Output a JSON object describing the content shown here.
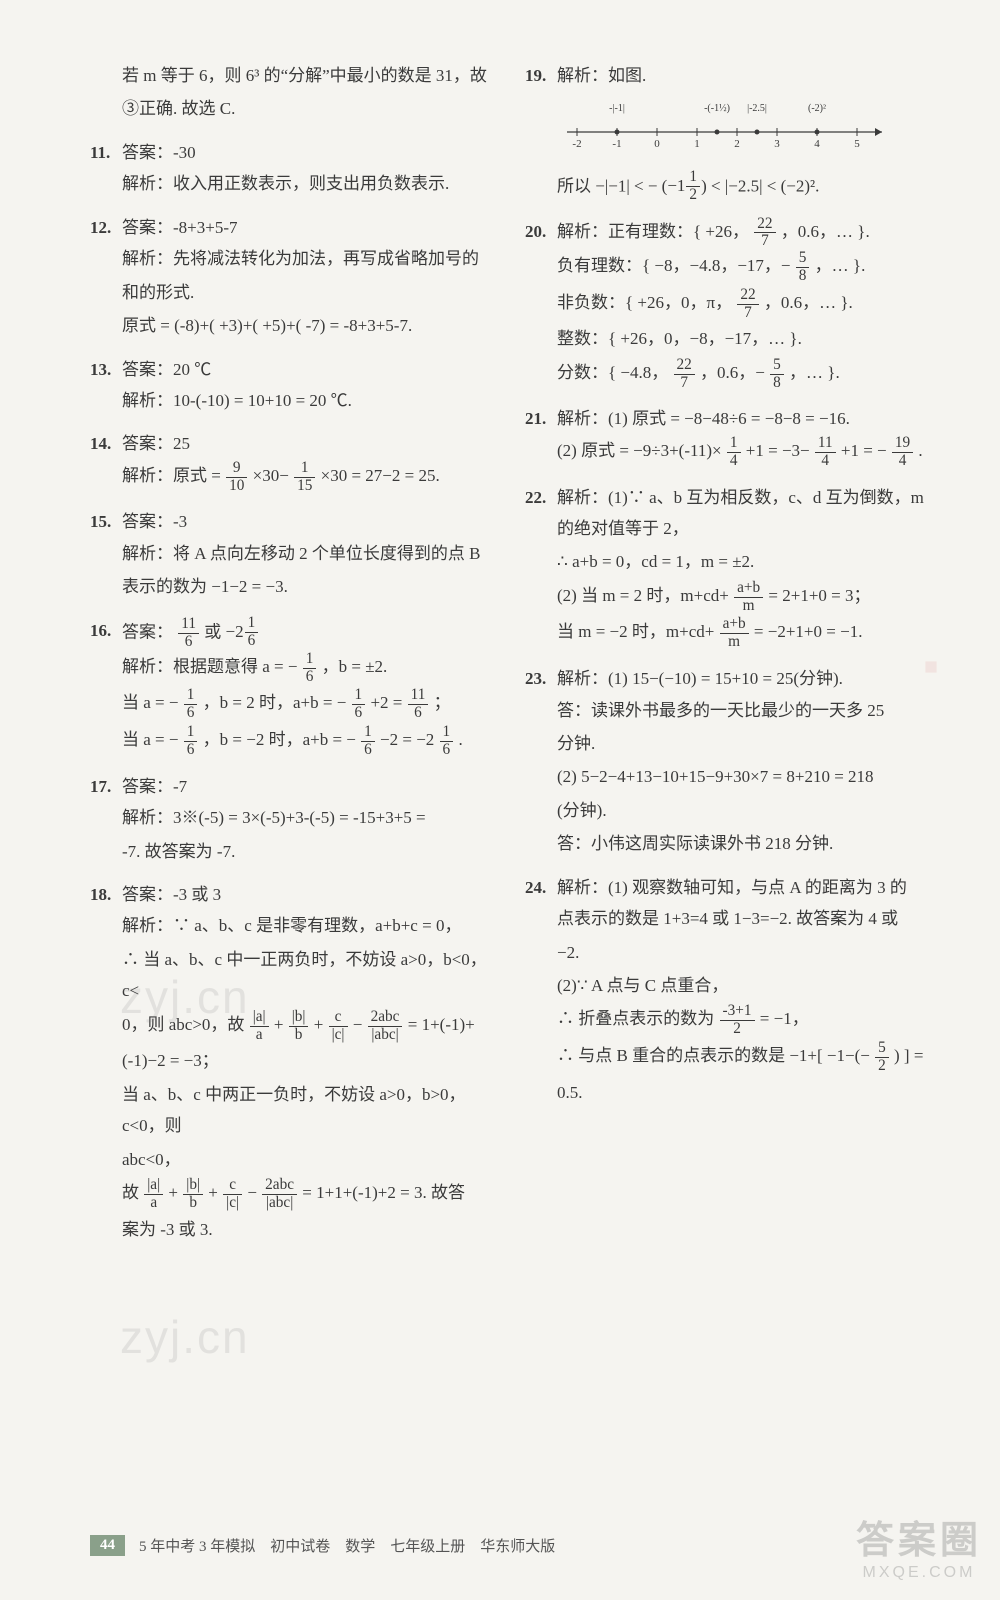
{
  "left": {
    "intro_a": "若 m 等于 6，则 6³ 的“分解”中最小的数是 31，故",
    "intro_b": "③正确. 故选 C.",
    "q11": {
      "ans": "答案：-30",
      "exp": "解析：收入用正数表示，则支出用负数表示."
    },
    "q12": {
      "ans": "答案：-8+3+5-7",
      "exp1": "解析：先将减法转化为加法，再写成省略加号的",
      "exp2": "和的形式.",
      "exp3": "原式 = (-8)+( +3)+( +5)+( -7) = -8+3+5-7."
    },
    "q13": {
      "ans": "答案：20 ℃",
      "exp": "解析：10-(-10) = 10+10 = 20 ℃."
    },
    "q14": {
      "ans": "答案：25",
      "exp_prefix": "解析：原式 =",
      "f1n": "9",
      "f1d": "10",
      "mid1": "×30−",
      "f2n": "1",
      "f2d": "15",
      "tail": "×30 = 27−2 = 25."
    },
    "q15": {
      "ans": "答案：-3",
      "exp1": "解析：将 A 点向左移动 2 个单位长度得到的点 B",
      "exp2": "表示的数为 −1−2 = −3."
    },
    "q16": {
      "ans_pre": "答案：",
      "af1n": "11",
      "af1d": "6",
      "or": "或",
      "amw": "−2",
      "amfn": "1",
      "amfd": "6",
      "l1_pre": "解析：根据题意得 a = −",
      "l1_fn": "1",
      "l1_fd": "6",
      "l1_post": "，b = ±2.",
      "l2_pre": "当 a = −",
      "l2_fn": "1",
      "l2_fd": "6",
      "l2_mid": "，b = 2 时，a+b = −",
      "l2_fn2": "1",
      "l2_fd2": "6",
      "l2_mid2": "+2 =",
      "l2_fn3": "11",
      "l2_fd3": "6",
      "l2_end": "；",
      "l3_pre": "当 a = −",
      "l3_fn": "1",
      "l3_fd": "6",
      "l3_mid": "，b = −2 时，a+b = −",
      "l3_fn2": "1",
      "l3_fd2": "6",
      "l3_mid2": "−2 = −2",
      "l3_fn3": "1",
      "l3_fd3": "6",
      "l3_end": "."
    },
    "q17": {
      "ans": "答案：-7",
      "exp1": "解析：3※(-5) = 3×(-5)+3-(-5) = -15+3+5 =",
      "exp2": "-7. 故答案为 -7."
    },
    "q18": {
      "ans": "答案：-3 或 3",
      "exp1": "解析：∵ a、b、c 是非零有理数，a+b+c = 0，",
      "exp2": "∴ 当 a、b、c 中一正两负时，不妨设 a>0，b<0，c<",
      "exp3_pre": "0，则 abc>0，故",
      "t1n": "|a|",
      "t1d": "a",
      "p1": "+",
      "t2n": "|b|",
      "t2d": "b",
      "p2": "+",
      "t3n": "c",
      "t3d": "|c|",
      "p3": "−",
      "t4n": "2abc",
      "t4d": "|abc|",
      "exp3_post": "= 1+(-1)+",
      "exp4": "(-1)−2 = −3；",
      "exp5": "当 a、b、c 中两正一负时，不妨设 a>0，b>0，c<0，则",
      "exp5b": "abc<0，",
      "exp6_pre": "故",
      "exp6_post": "= 1+1+(-1)+2 = 3. 故答",
      "exp7": "案为 -3 或 3."
    }
  },
  "right": {
    "q19": {
      "head": "解析：如图.",
      "nl": {
        "ticks": [
          -2,
          -1,
          0,
          1,
          2,
          3,
          4,
          5
        ],
        "labels": [
          {
            "x": -1,
            "t": "-|-1|"
          },
          {
            "x": 1.5,
            "t": "-(-1½)"
          },
          {
            "x": 2.5,
            "t": "|-2.5|"
          },
          {
            "x": 4,
            "t": "(-2)²"
          }
        ]
      },
      "concl_pre": "所以 −|−1| < −",
      "cf_w": "1",
      "cf_n": "1",
      "cf_d": "2",
      "concl_post": "< |−2.5| < (−2)²."
    },
    "q20": {
      "l1a": "解析：正有理数：{ +26，",
      "f1n": "22",
      "f1d": "7",
      "l1b": "，0.6，… }.",
      "l2a": "负有理数：{ −8，−4.8，−17，−",
      "f2n": "5",
      "f2d": "8",
      "l2b": "，… }.",
      "l3a": "非负数：{ +26，0，π，",
      "f3n": "22",
      "f3d": "7",
      "l3b": "，0.6，… }.",
      "l4": "整数：{ +26，0，−8，−17，… }.",
      "l5a": "分数：{ −4.8，",
      "f5n": "22",
      "f5d": "7",
      "l5b": "，0.6，−",
      "f5n2": "5",
      "f5d2": "8",
      "l5c": "，… }."
    },
    "q21": {
      "l1": "解析：(1) 原式 = −8−48÷6 = −8−8 = −16.",
      "l2a": "(2) 原式 = −9÷3+(-11)×",
      "f1n": "1",
      "f1d": "4",
      "l2b": "+1 = −3−",
      "f2n": "11",
      "f2d": "4",
      "l2c": "+1 = −",
      "f3n": "19",
      "f3d": "4",
      "l2d": "."
    },
    "q22": {
      "l1": "解析：(1)∵ a、b 互为相反数，c、d 互为倒数，m",
      "l1b": "的绝对值等于 2，",
      "l2": "∴ a+b = 0，cd = 1，m = ±2.",
      "l3a": "(2) 当 m = 2 时，m+cd+",
      "f1n": "a+b",
      "f1d": "m",
      "l3b": "= 2+1+0 = 3；",
      "l4a": "当 m = −2 时，m+cd+",
      "f2n": "a+b",
      "f2d": "m",
      "l4b": "= −2+1+0 = −1."
    },
    "q23": {
      "l1": "解析：(1) 15−(−10) = 15+10 = 25(分钟).",
      "l2": "答：读课外书最多的一天比最少的一天多 25",
      "l2b": "分钟.",
      "l3": "(2) 5−2−4+13−10+15−9+30×7 = 8+210 = 218",
      "l3b": "(分钟).",
      "l4": "答：小伟这周实际读课外书 218 分钟."
    },
    "q24": {
      "l1": "解析：(1) 观察数轴可知，与点 A 的距离为 3 的",
      "l2": "点表示的数是 1+3=4 或 1−3=−2. 故答案为 4 或",
      "l2b": "−2.",
      "l3": "(2)∵ A 点与 C 点重合，",
      "l4a": "∴ 折叠点表示的数为",
      "f1n": "-3+1",
      "f1d": "2",
      "l4b": "= −1，",
      "l5a": "∴ 与点 B 重合的点表示的数是 −1+[ −1−(−",
      "f2n": "5",
      "f2d": "2",
      "l5b": ") ] =",
      "l6": "0.5."
    }
  },
  "footer": {
    "page": "44",
    "txt": "5 年中考 3 年模拟　初中试卷　数学　七年级上册　华东师大版"
  },
  "wm": "zyj.cn",
  "corner": {
    "big": "答案圈",
    "small": "MXQE.COM"
  }
}
